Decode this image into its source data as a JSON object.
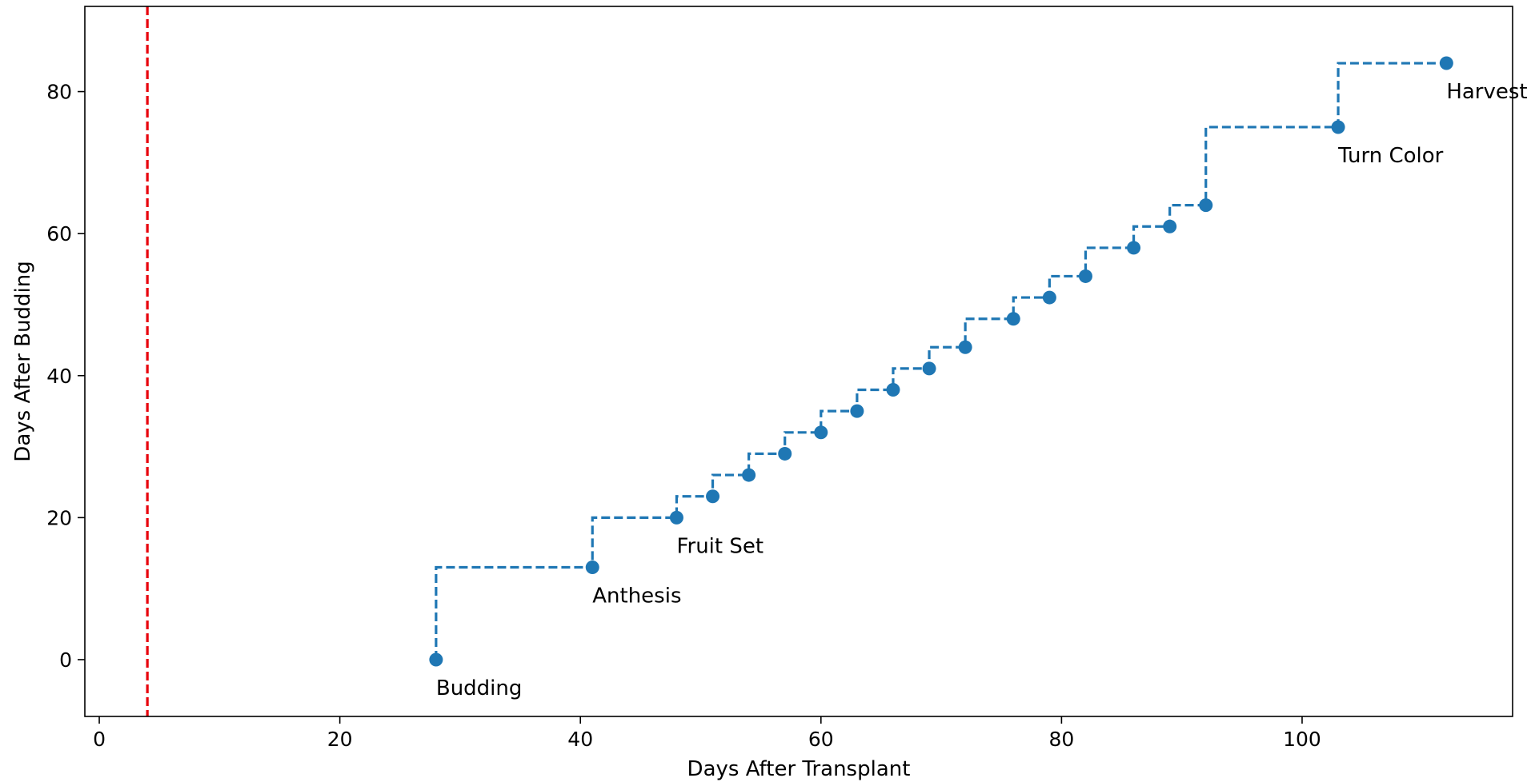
{
  "chart_data": {
    "type": "line",
    "line_style": "dashed step (post)",
    "xlabel": "Days After Transplant",
    "ylabel": "Days After Budding",
    "xlim": [
      -1.2,
      117.5
    ],
    "ylim": [
      -8,
      92
    ],
    "xticks": [
      0,
      20,
      40,
      60,
      80,
      100
    ],
    "yticks": [
      0,
      20,
      40,
      60,
      80
    ],
    "grid": false,
    "series": [
      {
        "color": "#1f77b4",
        "points": [
          {
            "x": 28,
            "y": 0
          },
          {
            "x": 41,
            "y": 13
          },
          {
            "x": 48,
            "y": 20
          },
          {
            "x": 51,
            "y": 23
          },
          {
            "x": 54,
            "y": 26
          },
          {
            "x": 57,
            "y": 29
          },
          {
            "x": 60,
            "y": 32
          },
          {
            "x": 63,
            "y": 35
          },
          {
            "x": 66,
            "y": 38
          },
          {
            "x": 69,
            "y": 41
          },
          {
            "x": 72,
            "y": 44
          },
          {
            "x": 76,
            "y": 48
          },
          {
            "x": 79,
            "y": 51
          },
          {
            "x": 82,
            "y": 54
          },
          {
            "x": 86,
            "y": 58
          },
          {
            "x": 89,
            "y": 61
          },
          {
            "x": 92,
            "y": 64
          },
          {
            "x": 103,
            "y": 75
          },
          {
            "x": 112,
            "y": 84
          }
        ]
      }
    ],
    "annotations": [
      {
        "text": "Budding",
        "x": 28,
        "y": 0
      },
      {
        "text": "Anthesis",
        "x": 41,
        "y": 13
      },
      {
        "text": "Fruit Set",
        "x": 48,
        "y": 20
      },
      {
        "text": "Turn Color",
        "x": 103,
        "y": 75
      },
      {
        "text": "Harvest",
        "x": 112,
        "y": 84
      }
    ],
    "vertical_line": {
      "x": 4,
      "color": "#e8000b",
      "style": "dashed"
    }
  }
}
